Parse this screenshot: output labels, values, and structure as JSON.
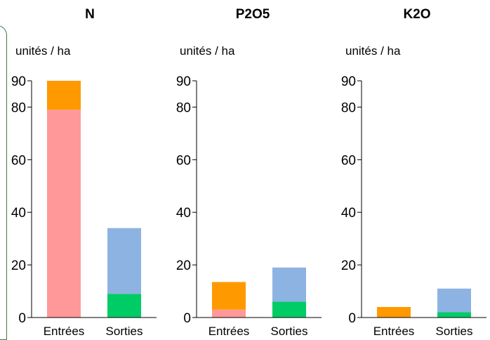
{
  "chart_data": [
    {
      "type": "bar",
      "stacked": true,
      "title": "N",
      "ylabel": "unités / ha",
      "categories": [
        "Entrées",
        "Sorties"
      ],
      "ylim": [
        0,
        90
      ],
      "yticks": [
        0,
        20,
        40,
        60,
        80,
        90
      ],
      "series": [
        {
          "values": [
            79,
            9
          ],
          "colors": [
            "#ff9999",
            "#00cc66"
          ]
        },
        {
          "values": [
            11,
            25
          ],
          "colors": [
            "#ff9900",
            "#8db3e2"
          ]
        }
      ]
    },
    {
      "type": "bar",
      "stacked": true,
      "title": "P2O5",
      "ylabel": "unités / ha",
      "categories": [
        "Entrées",
        "Sorties"
      ],
      "ylim": [
        0,
        90
      ],
      "yticks": [
        0,
        20,
        40,
        60,
        80,
        90
      ],
      "series": [
        {
          "values": [
            3,
            6
          ],
          "colors": [
            "#ff9999",
            "#00cc66"
          ]
        },
        {
          "values": [
            10.5,
            13
          ],
          "colors": [
            "#ff9900",
            "#8db3e2"
          ]
        }
      ]
    },
    {
      "type": "bar",
      "stacked": true,
      "title": "K2O",
      "ylabel": "unités / ha",
      "categories": [
        "Entrées",
        "Sorties"
      ],
      "ylim": [
        0,
        90
      ],
      "yticks": [
        0,
        20,
        40,
        60,
        80,
        90
      ],
      "series": [
        {
          "values": [
            0,
            2
          ],
          "colors": [
            "#ff9999",
            "#00cc66"
          ]
        },
        {
          "values": [
            4,
            9
          ],
          "colors": [
            "#ff9900",
            "#8db3e2"
          ]
        }
      ]
    }
  ]
}
